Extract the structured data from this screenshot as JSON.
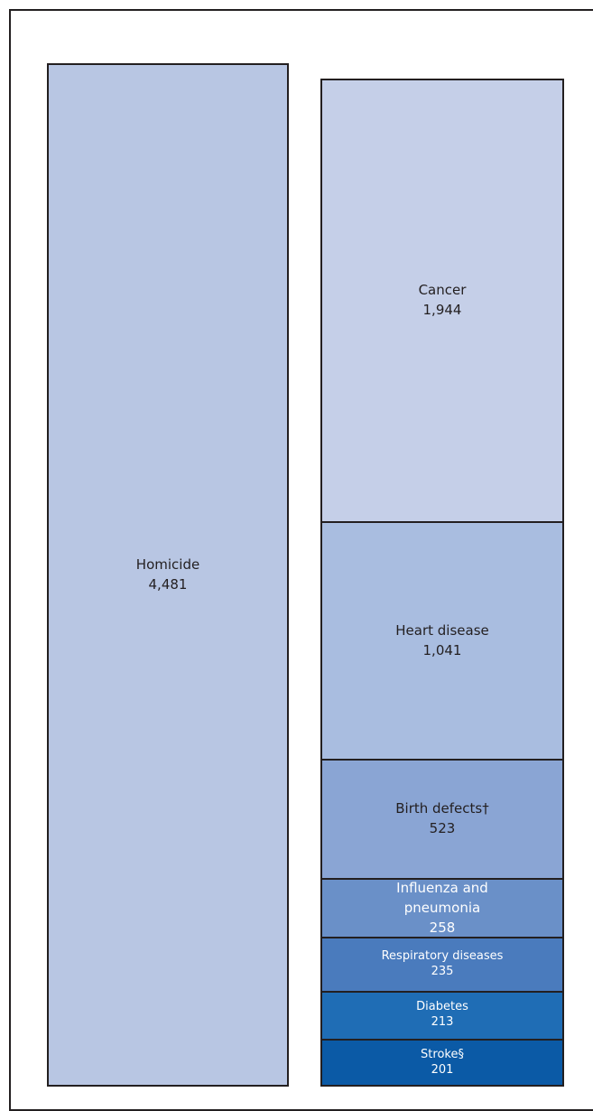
{
  "chart_data": {
    "type": "stacked_bar",
    "categories": [
      null,
      null
    ],
    "series": [
      {
        "name": "Homicide",
        "color": "#b8c6e3",
        "values": [
          4481,
          null
        ],
        "value_labels": [
          "4,481",
          null
        ]
      },
      {
        "name": "Stroke§",
        "color": "#0b5aa6",
        "values": [
          null,
          201
        ],
        "value_labels": [
          null,
          "201"
        ]
      },
      {
        "name": "Diabetes",
        "color": "#1f6db5",
        "values": [
          null,
          213
        ],
        "value_labels": [
          null,
          "213"
        ]
      },
      {
        "name": "Respiratory diseases",
        "color": "#4a7bbd",
        "values": [
          null,
          235
        ],
        "value_labels": [
          null,
          "235"
        ]
      },
      {
        "name": "Influenza and pneumonia",
        "color": "#6a90c8",
        "values": [
          null,
          258
        ],
        "value_labels": [
          null,
          "258"
        ]
      },
      {
        "name": "Birth defects†",
        "color": "#8aa5d4",
        "values": [
          null,
          523
        ],
        "value_labels": [
          null,
          "523"
        ]
      },
      {
        "name": "Heart disease",
        "color": "#a9bde0",
        "values": [
          null,
          1041
        ],
        "value_labels": [
          null,
          "1,041"
        ]
      },
      {
        "name": "Cancer",
        "color": "#c5cfe8",
        "values": [
          null,
          1944
        ],
        "value_labels": [
          null,
          "1,944"
        ]
      }
    ]
  }
}
